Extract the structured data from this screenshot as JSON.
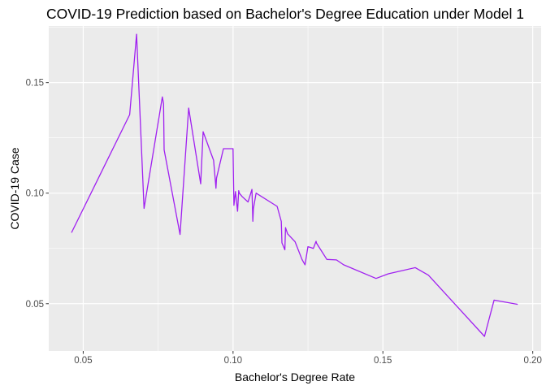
{
  "chart_data": {
    "type": "line",
    "title": "COVID-19 Prediction based on Bachelor's Degree Education under Model 1",
    "xlabel": "Bachelor's Degree Rate",
    "ylabel": "COVID-19 Case",
    "xlim": [
      0.0385,
      0.2028
    ],
    "ylim": [
      0.0286,
      0.1756
    ],
    "x_ticks": [
      0.05,
      0.1,
      0.15,
      0.2
    ],
    "x_tick_labels": [
      "0.05",
      "0.10",
      "0.15",
      "0.20"
    ],
    "y_ticks": [
      0.05,
      0.1,
      0.15
    ],
    "y_tick_labels": [
      "0.05",
      "0.10",
      "0.15"
    ],
    "grid": true,
    "panel_background": "#ebebeb",
    "grid_color": "#ffffff",
    "line_color": "#a020f0",
    "series": [
      {
        "x": [
          0.0461,
          0.0655,
          0.0678,
          0.0703,
          0.0764,
          0.0768,
          0.077,
          0.0823,
          0.0852,
          0.0892,
          0.09,
          0.0935,
          0.0943,
          0.0945,
          0.0968,
          0.1,
          0.1003,
          0.1008,
          0.1015,
          0.1019,
          0.1021,
          0.103,
          0.105,
          0.1063,
          0.1066,
          0.1068,
          0.1077,
          0.1147,
          0.1161,
          0.1163,
          0.1173,
          0.1175,
          0.1182,
          0.1207,
          0.123,
          0.124,
          0.125,
          0.1268,
          0.1277,
          0.1279,
          0.1313,
          0.1345,
          0.1369,
          0.1477,
          0.1518,
          0.1608,
          0.1652,
          0.1839,
          0.1871,
          0.195
        ],
        "y": [
          0.0821,
          0.1355,
          0.1719,
          0.0931,
          0.1435,
          0.1404,
          0.1196,
          0.0813,
          0.1385,
          0.1042,
          0.1278,
          0.1148,
          0.1022,
          0.1068,
          0.1201,
          0.1201,
          0.0945,
          0.1007,
          0.0918,
          0.1011,
          0.1,
          0.0985,
          0.096,
          0.1017,
          0.0873,
          0.093,
          0.1,
          0.094,
          0.0872,
          0.0775,
          0.0744,
          0.0844,
          0.0816,
          0.078,
          0.07,
          0.0676,
          0.0758,
          0.075,
          0.0782,
          0.0773,
          0.07,
          0.0698,
          0.0676,
          0.0614,
          0.0635,
          0.0663,
          0.0629,
          0.0352,
          0.0516,
          0.0497
        ]
      }
    ]
  }
}
